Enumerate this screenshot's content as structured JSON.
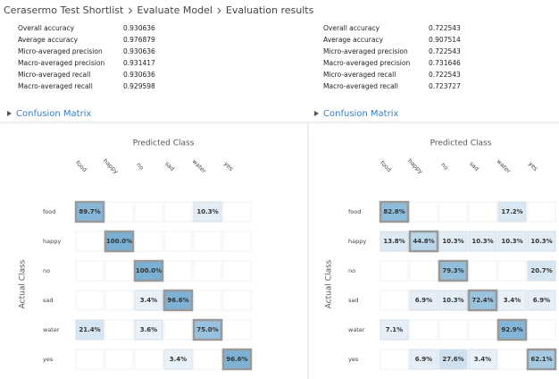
{
  "breadcrumb": [
    "Cerasermo Test Shortlist",
    "Evaluate Model",
    "Evaluation results"
  ],
  "panels": [
    {
      "metrics": [
        {
          "label": "Overall accuracy",
          "value": "0.930636"
        },
        {
          "label": "Average accuracy",
          "value": "0.976879"
        },
        {
          "label": "Micro-averaged precision",
          "value": "0.930636"
        },
        {
          "label": "Macro-averaged precision",
          "value": "0.931417"
        },
        {
          "label": "Micro-averaged recall",
          "value": "0.930636"
        },
        {
          "label": "Macro-averaged recall",
          "value": "0.929598"
        }
      ],
      "section_title": "Confusion Matrix",
      "predicted_label": "Predicted Class",
      "actual_label": "Actual Class",
      "columns": [
        "food",
        "happy",
        "no",
        "sad",
        "water",
        "yes"
      ],
      "rows": [
        "food",
        "happy",
        "no",
        "sad",
        "water",
        "yes"
      ],
      "matrix": [
        [
          {
            "value": 89.7,
            "label": "89.7%"
          },
          null,
          null,
          null,
          {
            "value": 10.3,
            "label": "10.3%"
          },
          null
        ],
        [
          null,
          {
            "value": 100,
            "label": "100.0%"
          },
          null,
          null,
          null,
          null
        ],
        [
          null,
          null,
          {
            "value": 100,
            "label": "100.0%"
          },
          null,
          null,
          null
        ],
        [
          null,
          null,
          {
            "value": 3.4,
            "label": "3.4%"
          },
          {
            "value": 96.6,
            "label": "96.6%"
          },
          null,
          null
        ],
        [
          {
            "value": 21.4,
            "label": "21.4%"
          },
          null,
          {
            "value": 3.6,
            "label": "3.6%"
          },
          null,
          {
            "value": 75,
            "label": "75.0%"
          },
          null
        ],
        [
          null,
          null,
          null,
          {
            "value": 3.4,
            "label": "3.4%"
          },
          null,
          {
            "value": 96.6,
            "label": "96.6%"
          }
        ]
      ]
    },
    {
      "metrics": [
        {
          "label": "Overall accuracy",
          "value": "0.722543"
        },
        {
          "label": "Average accuracy",
          "value": "0.907514"
        },
        {
          "label": "Micro-averaged precision",
          "value": "0.722543"
        },
        {
          "label": "Macro-averaged precision",
          "value": "0.731646"
        },
        {
          "label": "Micro-averaged recall",
          "value": "0.722543"
        },
        {
          "label": "Macro-averaged recall",
          "value": "0.723727"
        }
      ],
      "section_title": "Confusion Matrix",
      "predicted_label": "Predicted Class",
      "actual_label": "Actual Class",
      "columns": [
        "food",
        "happy",
        "no",
        "sad",
        "water",
        "yes"
      ],
      "rows": [
        "food",
        "happy",
        "no",
        "sad",
        "water",
        "yes"
      ],
      "matrix": [
        [
          {
            "value": 82.8,
            "label": "82.8%"
          },
          null,
          null,
          null,
          {
            "value": 17.2,
            "label": "17.2%"
          },
          null
        ],
        [
          {
            "value": 13.8,
            "label": "13.8%"
          },
          {
            "value": 44.8,
            "label": "44.8%"
          },
          {
            "value": 10.3,
            "label": "10.3%"
          },
          {
            "value": 10.3,
            "label": "10.3%"
          },
          {
            "value": 10.3,
            "label": "10.3%"
          },
          {
            "value": 10.3,
            "label": "10.3%"
          }
        ],
        [
          null,
          null,
          {
            "value": 79.3,
            "label": "79.3%"
          },
          null,
          null,
          {
            "value": 20.7,
            "label": "20.7%"
          }
        ],
        [
          null,
          {
            "value": 6.9,
            "label": "6.9%"
          },
          {
            "value": 10.3,
            "label": "10.3%"
          },
          {
            "value": 72.4,
            "label": "72.4%"
          },
          {
            "value": 3.4,
            "label": "3.4%"
          },
          {
            "value": 6.9,
            "label": "6.9%"
          }
        ],
        [
          {
            "value": 7.1,
            "label": "7.1%"
          },
          null,
          null,
          null,
          {
            "value": 92.9,
            "label": "92.9%"
          },
          null
        ],
        [
          null,
          {
            "value": 6.9,
            "label": "6.9%"
          },
          {
            "value": 27.6,
            "label": "27.6%"
          },
          {
            "value": 3.4,
            "label": "3.4%"
          },
          null,
          {
            "value": 62.1,
            "label": "62.1%"
          }
        ]
      ]
    }
  ]
}
